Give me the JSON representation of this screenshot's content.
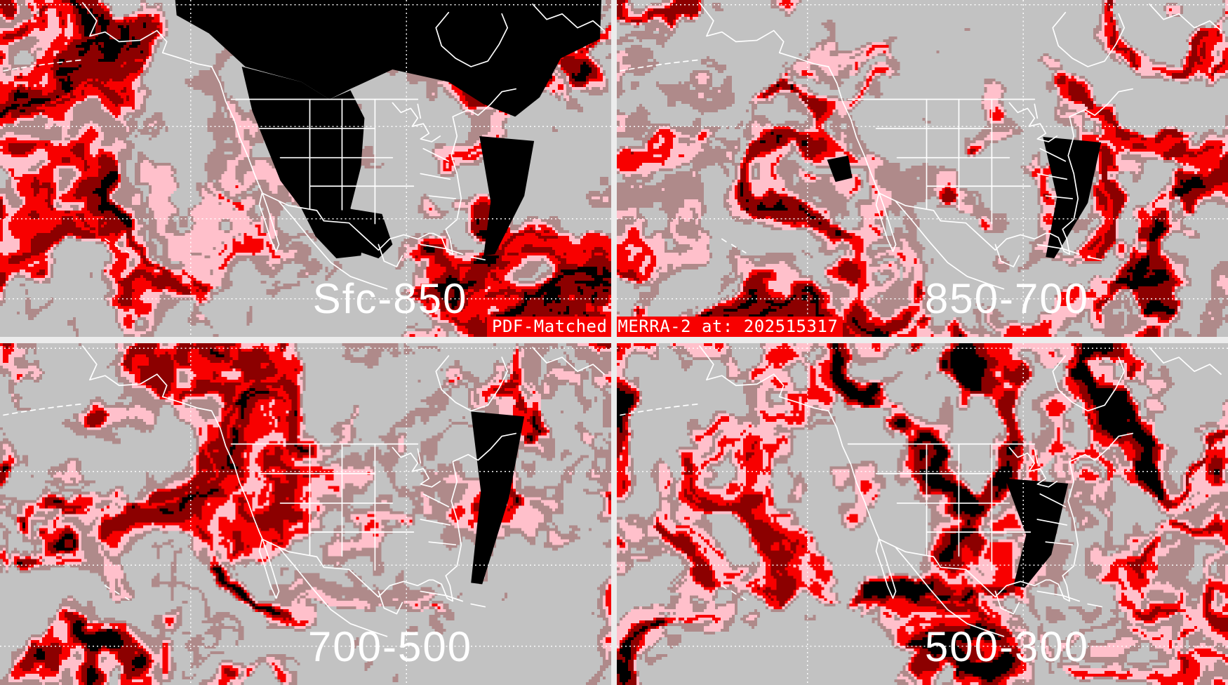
{
  "figure": {
    "title": "PDF-Matched MERRA-2 at: 202515317",
    "panels": [
      {
        "label": "Sfc-850"
      },
      {
        "label": "850-700"
      },
      {
        "label": "700-500"
      },
      {
        "label": "500-300"
      }
    ],
    "palette": {
      "background_gray": "#c2c2c2",
      "low_moisture": "#af8a8a",
      "moderate_pink": "#ffc0cb",
      "high_red": "#f80000",
      "very_high_darkred": "#8c0000",
      "extreme_black": "#000000",
      "coastline_white": "#ffffff",
      "gridline_white": "#ffffff",
      "divider_light": "#ececec",
      "title_bg": "#f80000",
      "title_fg": "#ffffff"
    }
  }
}
